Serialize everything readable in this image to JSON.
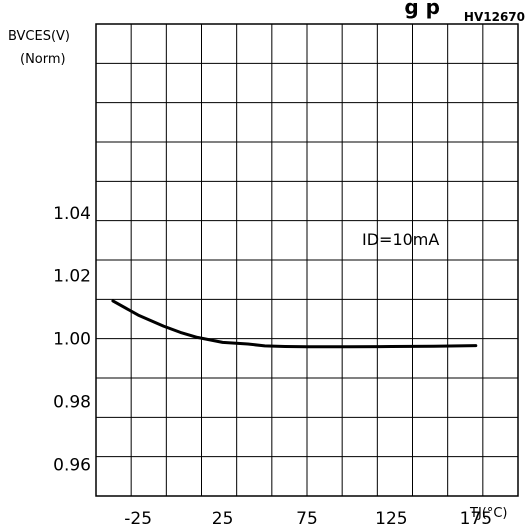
{
  "chart_data": {
    "type": "line",
    "title_fragment": "g  p",
    "figure_id": "HV12670",
    "ylabel_line1": "BVCES(V)",
    "ylabel_line2": "(Norm)",
    "xlabel": "TJ(°C)",
    "annotation": "ID=10mA",
    "x_ticks": [
      -25,
      25,
      75,
      125,
      175
    ],
    "x_tick_labels": [
      "-25",
      "25",
      "75",
      "125",
      "175"
    ],
    "y_ticks": [
      0.96,
      0.98,
      1.0,
      1.02,
      1.04
    ],
    "y_tick_labels": [
      "0.96",
      "0.98",
      "1.00",
      "1.02",
      "1.04"
    ],
    "xlim": [
      -50,
      200
    ],
    "ylim": [
      0.95,
      1.1
    ],
    "grid": true,
    "series": [
      {
        "x": [
          -40,
          -25,
          -10,
          0,
          10,
          25,
          40,
          50,
          62,
          75,
          87,
          100,
          125,
          150,
          175
        ],
        "y": [
          1.012,
          1.0075,
          1.004,
          1.002,
          1.0004,
          0.9988,
          0.9983,
          0.9977,
          0.9975,
          0.9974,
          0.9974,
          0.9974,
          0.9975,
          0.9976,
          0.9978
        ]
      }
    ]
  },
  "colors": {
    "line": "#000000",
    "grid": "#000000",
    "background": "#ffffff"
  }
}
